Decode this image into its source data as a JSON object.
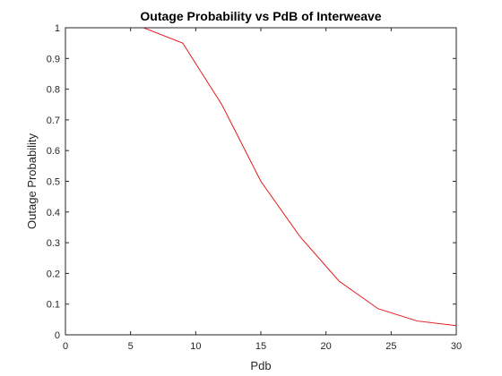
{
  "chart_data": {
    "type": "line",
    "title": "Outage Probability vs PdB of Interweave",
    "xlabel": "Pdb",
    "ylabel": "Outage Probability",
    "xlim": [
      0,
      30
    ],
    "ylim": [
      0,
      1
    ],
    "xticks": [
      "0",
      "5",
      "10",
      "15",
      "20",
      "25",
      "30"
    ],
    "yticks": [
      "0",
      "0.1",
      "0.2",
      "0.3",
      "0.4",
      "0.5",
      "0.6",
      "0.7",
      "0.8",
      "0.9",
      "1"
    ],
    "grid": false,
    "legend": "none",
    "series": [
      {
        "color": "#e41a1c",
        "x": [
          0,
          3,
          6,
          9,
          12,
          15,
          18,
          21,
          24,
          27,
          30
        ],
        "y": [
          1.0,
          1.0,
          1.0,
          0.95,
          0.75,
          0.5,
          0.32,
          0.175,
          0.085,
          0.045,
          0.03
        ]
      }
    ]
  }
}
